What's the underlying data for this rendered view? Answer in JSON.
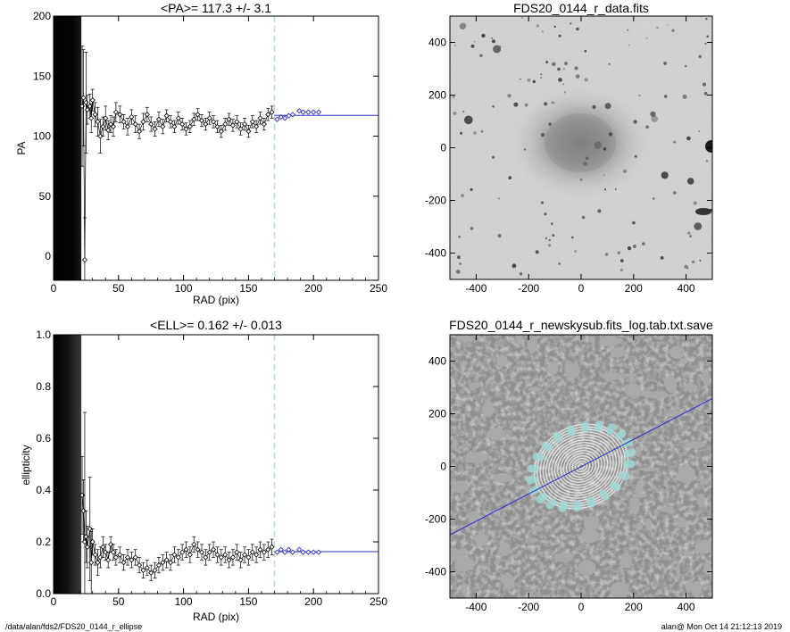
{
  "footer": {
    "path": "/data/alan/fds2/FDS20_0144_r_ellipse",
    "user_time": "alan@  Mon Oct 14 21:12:13 2019"
  },
  "colors": {
    "fit_line": "#2d2dc8",
    "radius_marker": "#a8e6dc",
    "fit_points": "#3434c0",
    "contours": "#e6e6e6",
    "ellipse_marks": "#5fd0cc",
    "axis": "#000000"
  },
  "chart_data": [
    {
      "type": "scatter",
      "title": "<PA>= 117.3 +/-   3.1",
      "xlabel": "RAD (pix)",
      "ylabel": "PA",
      "xlim": [
        0,
        250
      ],
      "ylim": [
        -20,
        200
      ],
      "xticks": [
        "0",
        "50",
        "100",
        "150",
        "200",
        "250"
      ],
      "yticks": [
        "0",
        "50",
        "100",
        "150",
        "200"
      ],
      "xtick_values": [
        0,
        50,
        100,
        150,
        200,
        250
      ],
      "ytick_values": [
        0,
        50,
        100,
        150,
        200
      ],
      "shaded_region_x": [
        0,
        20
      ],
      "radius_marker_x": 170,
      "mean_value": 117.3,
      "mean_error": 3.1,
      "fit_range_x": [
        170,
        250
      ],
      "points": [
        {
          "x": 22,
          "y": 125,
          "err": 50
        },
        {
          "x": 23,
          "y": 132,
          "err": 40
        },
        {
          "x": 24,
          "y": -3,
          "err": 35
        },
        {
          "x": 25,
          "y": 128,
          "err": 42
        },
        {
          "x": 26,
          "y": 122,
          "err": 12
        },
        {
          "x": 28,
          "y": 125,
          "err": 10
        },
        {
          "x": 29,
          "y": 115,
          "err": 12
        },
        {
          "x": 30,
          "y": 130,
          "err": 9
        },
        {
          "x": 32,
          "y": 118,
          "err": 10
        },
        {
          "x": 34,
          "y": 112,
          "err": 12
        },
        {
          "x": 36,
          "y": 100,
          "err": 14
        },
        {
          "x": 38,
          "y": 108,
          "err": 8
        },
        {
          "x": 40,
          "y": 115,
          "err": 10
        },
        {
          "x": 42,
          "y": 105,
          "err": 8
        },
        {
          "x": 44,
          "y": 110,
          "err": 7
        },
        {
          "x": 46,
          "y": 108,
          "err": 8
        },
        {
          "x": 48,
          "y": 120,
          "err": 8
        },
        {
          "x": 51,
          "y": 118,
          "err": 7
        },
        {
          "x": 54,
          "y": 112,
          "err": 6
        },
        {
          "x": 57,
          "y": 108,
          "err": 7
        },
        {
          "x": 60,
          "y": 116,
          "err": 6
        },
        {
          "x": 63,
          "y": 110,
          "err": 7
        },
        {
          "x": 66,
          "y": 104,
          "err": 6
        },
        {
          "x": 69,
          "y": 112,
          "err": 7
        },
        {
          "x": 72,
          "y": 118,
          "err": 6
        },
        {
          "x": 75,
          "y": 110,
          "err": 6
        },
        {
          "x": 78,
          "y": 106,
          "err": 6
        },
        {
          "x": 81,
          "y": 114,
          "err": 6
        },
        {
          "x": 84,
          "y": 108,
          "err": 6
        },
        {
          "x": 87,
          "y": 117,
          "err": 5
        },
        {
          "x": 90,
          "y": 112,
          "err": 5
        },
        {
          "x": 93,
          "y": 108,
          "err": 5
        },
        {
          "x": 96,
          "y": 115,
          "err": 5
        },
        {
          "x": 99,
          "y": 110,
          "err": 5
        },
        {
          "x": 102,
          "y": 106,
          "err": 5
        },
        {
          "x": 105,
          "y": 108,
          "err": 5
        },
        {
          "x": 108,
          "y": 114,
          "err": 5
        },
        {
          "x": 111,
          "y": 118,
          "err": 5
        },
        {
          "x": 114,
          "y": 113,
          "err": 5
        },
        {
          "x": 117,
          "y": 110,
          "err": 5
        },
        {
          "x": 120,
          "y": 115,
          "err": 5
        },
        {
          "x": 123,
          "y": 112,
          "err": 5
        },
        {
          "x": 126,
          "y": 108,
          "err": 5
        },
        {
          "x": 129,
          "y": 104,
          "err": 5
        },
        {
          "x": 132,
          "y": 110,
          "err": 5
        },
        {
          "x": 135,
          "y": 114,
          "err": 5
        },
        {
          "x": 138,
          "y": 109,
          "err": 5
        },
        {
          "x": 141,
          "y": 112,
          "err": 5
        },
        {
          "x": 144,
          "y": 106,
          "err": 5
        },
        {
          "x": 147,
          "y": 110,
          "err": 5
        },
        {
          "x": 150,
          "y": 104,
          "err": 5
        },
        {
          "x": 153,
          "y": 112,
          "err": 5
        },
        {
          "x": 156,
          "y": 108,
          "err": 5
        },
        {
          "x": 159,
          "y": 115,
          "err": 5
        },
        {
          "x": 162,
          "y": 110,
          "err": 5
        },
        {
          "x": 165,
          "y": 118,
          "err": 5
        },
        {
          "x": 168,
          "y": 120,
          "err": 5
        }
      ],
      "fit_points": [
        {
          "x": 172,
          "y": 114
        },
        {
          "x": 175,
          "y": 116
        },
        {
          "x": 178,
          "y": 115
        },
        {
          "x": 181,
          "y": 117
        },
        {
          "x": 184,
          "y": 118
        },
        {
          "x": 189,
          "y": 121
        },
        {
          "x": 192,
          "y": 120
        },
        {
          "x": 196,
          "y": 120
        },
        {
          "x": 200,
          "y": 120
        },
        {
          "x": 204,
          "y": 120
        }
      ]
    },
    {
      "type": "scatter",
      "title": "<ELL>= 0.162 +/-  0.013",
      "xlabel": "RAD (pix)",
      "ylabel": "ellipticity",
      "xlim": [
        0,
        250
      ],
      "ylim": [
        0,
        1
      ],
      "xticks": [
        "0",
        "50",
        "100",
        "150",
        "200",
        "250"
      ],
      "yticks": [
        "0.0",
        "0.2",
        "0.4",
        "0.6",
        "0.8",
        "1.0"
      ],
      "xtick_values": [
        0,
        50,
        100,
        150,
        200,
        250
      ],
      "ytick_values": [
        0,
        0.2,
        0.4,
        0.6,
        0.8,
        1.0
      ],
      "shaded_region_x": [
        0,
        20
      ],
      "radius_marker_x": 170,
      "mean_value": 0.162,
      "mean_error": 0.013,
      "fit_range_x": [
        170,
        250
      ],
      "points": [
        {
          "x": 22,
          "y": 0.38,
          "err": 0.15
        },
        {
          "x": 23,
          "y": 0.32,
          "err": 0.12
        },
        {
          "x": 24,
          "y": 0.2,
          "err": 0.5
        },
        {
          "x": 25,
          "y": 0.22,
          "err": 0.1
        },
        {
          "x": 26,
          "y": 0.18,
          "err": 0.08
        },
        {
          "x": 28,
          "y": 0.25,
          "err": 0.2
        },
        {
          "x": 29,
          "y": 0.12,
          "err": 0.12
        },
        {
          "x": 30,
          "y": 0.2,
          "err": 0.05
        },
        {
          "x": 32,
          "y": 0.15,
          "err": 0.04
        },
        {
          "x": 34,
          "y": 0.12,
          "err": 0.05
        },
        {
          "x": 36,
          "y": 0.14,
          "err": 0.04
        },
        {
          "x": 38,
          "y": 0.18,
          "err": 0.04
        },
        {
          "x": 40,
          "y": 0.16,
          "err": 0.03
        },
        {
          "x": 42,
          "y": 0.13,
          "err": 0.03
        },
        {
          "x": 44,
          "y": 0.19,
          "err": 0.03
        },
        {
          "x": 46,
          "y": 0.16,
          "err": 0.03
        },
        {
          "x": 48,
          "y": 0.14,
          "err": 0.03
        },
        {
          "x": 51,
          "y": 0.15,
          "err": 0.03
        },
        {
          "x": 54,
          "y": 0.12,
          "err": 0.03
        },
        {
          "x": 57,
          "y": 0.14,
          "err": 0.03
        },
        {
          "x": 60,
          "y": 0.13,
          "err": 0.03
        },
        {
          "x": 63,
          "y": 0.14,
          "err": 0.03
        },
        {
          "x": 66,
          "y": 0.11,
          "err": 0.03
        },
        {
          "x": 69,
          "y": 0.09,
          "err": 0.03
        },
        {
          "x": 72,
          "y": 0.1,
          "err": 0.03
        },
        {
          "x": 75,
          "y": 0.08,
          "err": 0.03
        },
        {
          "x": 78,
          "y": 0.09,
          "err": 0.03
        },
        {
          "x": 81,
          "y": 0.11,
          "err": 0.03
        },
        {
          "x": 84,
          "y": 0.12,
          "err": 0.03
        },
        {
          "x": 87,
          "y": 0.13,
          "err": 0.03
        },
        {
          "x": 90,
          "y": 0.12,
          "err": 0.03
        },
        {
          "x": 93,
          "y": 0.15,
          "err": 0.03
        },
        {
          "x": 96,
          "y": 0.14,
          "err": 0.03
        },
        {
          "x": 99,
          "y": 0.16,
          "err": 0.03
        },
        {
          "x": 102,
          "y": 0.17,
          "err": 0.03
        },
        {
          "x": 105,
          "y": 0.15,
          "err": 0.03
        },
        {
          "x": 108,
          "y": 0.19,
          "err": 0.03
        },
        {
          "x": 111,
          "y": 0.17,
          "err": 0.03
        },
        {
          "x": 114,
          "y": 0.16,
          "err": 0.03
        },
        {
          "x": 117,
          "y": 0.14,
          "err": 0.03
        },
        {
          "x": 120,
          "y": 0.16,
          "err": 0.03
        },
        {
          "x": 123,
          "y": 0.17,
          "err": 0.03
        },
        {
          "x": 126,
          "y": 0.15,
          "err": 0.03
        },
        {
          "x": 129,
          "y": 0.14,
          "err": 0.03
        },
        {
          "x": 132,
          "y": 0.15,
          "err": 0.03
        },
        {
          "x": 135,
          "y": 0.13,
          "err": 0.03
        },
        {
          "x": 138,
          "y": 0.14,
          "err": 0.03
        },
        {
          "x": 141,
          "y": 0.16,
          "err": 0.03
        },
        {
          "x": 144,
          "y": 0.13,
          "err": 0.03
        },
        {
          "x": 147,
          "y": 0.15,
          "err": 0.03
        },
        {
          "x": 150,
          "y": 0.14,
          "err": 0.03
        },
        {
          "x": 153,
          "y": 0.16,
          "err": 0.03
        },
        {
          "x": 156,
          "y": 0.15,
          "err": 0.03
        },
        {
          "x": 159,
          "y": 0.17,
          "err": 0.03
        },
        {
          "x": 162,
          "y": 0.16,
          "err": 0.03
        },
        {
          "x": 165,
          "y": 0.17,
          "err": 0.03
        },
        {
          "x": 168,
          "y": 0.18,
          "err": 0.03
        }
      ],
      "fit_points": [
        {
          "x": 172,
          "y": 0.16
        },
        {
          "x": 175,
          "y": 0.17
        },
        {
          "x": 178,
          "y": 0.16
        },
        {
          "x": 181,
          "y": 0.17
        },
        {
          "x": 184,
          "y": 0.16
        },
        {
          "x": 189,
          "y": 0.17
        },
        {
          "x": 192,
          "y": 0.16
        },
        {
          "x": 196,
          "y": 0.16
        },
        {
          "x": 200,
          "y": 0.16
        },
        {
          "x": 204,
          "y": 0.16
        }
      ]
    },
    {
      "type": "heatmap",
      "title": "FDS20_0144_r_data.fits",
      "xlim": [
        -500,
        500
      ],
      "ylim": [
        -500,
        500
      ],
      "xticks": [
        "-400",
        "-200",
        "0",
        "200",
        "400"
      ],
      "yticks": [
        "-400",
        "-200",
        "0",
        "200",
        "400"
      ],
      "tick_values": [
        -400,
        -200,
        0,
        200,
        400
      ]
    },
    {
      "type": "heatmap",
      "title": "FDS20_0144_r_newskysub.fits_log.tab.txt.save",
      "xlim": [
        -500,
        500
      ],
      "ylim": [
        -500,
        500
      ],
      "xticks": [
        "-400",
        "-200",
        "0",
        "200",
        "400"
      ],
      "yticks": [
        "-400",
        "-200",
        "0",
        "200",
        "400"
      ],
      "tick_values": [
        -400,
        -200,
        0,
        200,
        400
      ],
      "pa_line": {
        "x": [
          -500,
          500
        ],
        "y": [
          -260,
          258
        ]
      }
    }
  ]
}
